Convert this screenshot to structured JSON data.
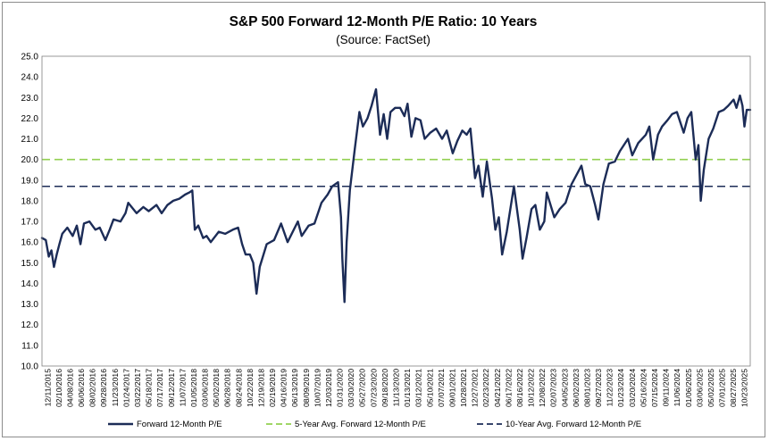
{
  "chart_data": {
    "type": "line",
    "title": "S&P 500 Forward 12-Month P/E Ratio: 10 Years",
    "subtitle": "(Source: FactSet)",
    "xlabel": "",
    "ylabel": "",
    "ylim": [
      10.0,
      25.0
    ],
    "y_ticks": [
      "10.0",
      "11.0",
      "12.0",
      "13.0",
      "14.0",
      "15.0",
      "16.0",
      "17.0",
      "18.0",
      "19.0",
      "20.0",
      "21.0",
      "22.0",
      "23.0",
      "24.0",
      "25.0"
    ],
    "x_range": [
      "2015-12-11",
      "2025-12-20"
    ],
    "x_ticks": [
      "12/11/2015",
      "02/10/2016",
      "04/08/2016",
      "06/06/2016",
      "08/02/2016",
      "09/28/2016",
      "11/23/2016",
      "01/24/2017",
      "03/22/2017",
      "05/18/2017",
      "07/17/2017",
      "09/12/2017",
      "11/07/2017",
      "01/05/2018",
      "03/06/2018",
      "05/02/2018",
      "06/28/2018",
      "08/24/2018",
      "10/22/2018",
      "12/19/2018",
      "02/19/2019",
      "04/16/2019",
      "06/13/2019",
      "08/09/2019",
      "10/07/2019",
      "12/03/2019",
      "01/31/2020",
      "03/30/2020",
      "05/27/2020",
      "07/23/2020",
      "09/18/2020",
      "11/13/2020",
      "01/13/2021",
      "03/12/2021",
      "05/10/2021",
      "07/07/2021",
      "09/01/2021",
      "10/28/2021",
      "12/27/2021",
      "02/23/2022",
      "04/21/2022",
      "06/17/2022",
      "08/16/2022",
      "10/12/2022",
      "12/08/2022",
      "02/07/2023",
      "04/05/2023",
      "06/02/2023",
      "08/01/2023",
      "09/27/2023",
      "11/22/2023",
      "01/23/2024",
      "03/20/2024",
      "05/16/2024",
      "07/15/2024",
      "09/11/2024",
      "11/06/2024",
      "01/06/2025",
      "03/06/2025",
      "05/02/2025",
      "07/01/2025",
      "08/27/2025",
      "10/23/2025"
    ],
    "grid": false,
    "legend_position": "bottom",
    "series": [
      {
        "name": "Forward 12-Month P/E",
        "color": "#1c2c57",
        "style": "solid",
        "points": [
          [
            "2015-12-11",
            16.2
          ],
          [
            "2015-12-31",
            16.1
          ],
          [
            "2016-01-15",
            15.3
          ],
          [
            "2016-01-29",
            15.6
          ],
          [
            "2016-02-11",
            14.8
          ],
          [
            "2016-02-25",
            15.4
          ],
          [
            "2016-03-10",
            15.9
          ],
          [
            "2016-03-25",
            16.4
          ],
          [
            "2016-04-20",
            16.7
          ],
          [
            "2016-05-18",
            16.3
          ],
          [
            "2016-06-08",
            16.8
          ],
          [
            "2016-06-27",
            15.9
          ],
          [
            "2016-07-15",
            16.9
          ],
          [
            "2016-08-12",
            17.0
          ],
          [
            "2016-09-12",
            16.6
          ],
          [
            "2016-10-05",
            16.7
          ],
          [
            "2016-11-03",
            16.1
          ],
          [
            "2016-11-25",
            16.6
          ],
          [
            "2016-12-15",
            17.1
          ],
          [
            "2017-01-20",
            17.0
          ],
          [
            "2017-02-15",
            17.4
          ],
          [
            "2017-03-01",
            17.9
          ],
          [
            "2017-04-13",
            17.4
          ],
          [
            "2017-05-18",
            17.7
          ],
          [
            "2017-06-15",
            17.5
          ],
          [
            "2017-07-25",
            17.8
          ],
          [
            "2017-08-21",
            17.4
          ],
          [
            "2017-09-20",
            17.8
          ],
          [
            "2017-10-20",
            18.0
          ],
          [
            "2017-11-20",
            18.1
          ],
          [
            "2017-12-20",
            18.3
          ],
          [
            "2018-01-10",
            18.4
          ],
          [
            "2018-01-26",
            18.5
          ],
          [
            "2018-02-08",
            16.6
          ],
          [
            "2018-02-26",
            16.8
          ],
          [
            "2018-03-23",
            16.2
          ],
          [
            "2018-04-10",
            16.3
          ],
          [
            "2018-05-02",
            16.0
          ],
          [
            "2018-06-12",
            16.5
          ],
          [
            "2018-07-15",
            16.4
          ],
          [
            "2018-08-24",
            16.6
          ],
          [
            "2018-09-20",
            16.7
          ],
          [
            "2018-10-11",
            15.9
          ],
          [
            "2018-10-29",
            15.4
          ],
          [
            "2018-11-20",
            15.4
          ],
          [
            "2018-12-07",
            15.0
          ],
          [
            "2018-12-24",
            13.5
          ],
          [
            "2019-01-10",
            14.8
          ],
          [
            "2019-02-15",
            15.9
          ],
          [
            "2019-03-25",
            16.1
          ],
          [
            "2019-04-30",
            16.9
          ],
          [
            "2019-06-03",
            16.0
          ],
          [
            "2019-07-26",
            17.0
          ],
          [
            "2019-08-15",
            16.3
          ],
          [
            "2019-09-20",
            16.8
          ],
          [
            "2019-10-20",
            16.9
          ],
          [
            "2019-11-25",
            17.9
          ],
          [
            "2019-12-27",
            18.3
          ],
          [
            "2020-01-20",
            18.7
          ],
          [
            "2020-02-19",
            18.9
          ],
          [
            "2020-03-05",
            17.2
          ],
          [
            "2020-03-12",
            15.2
          ],
          [
            "2020-03-23",
            13.1
          ],
          [
            "2020-04-03",
            16.0
          ],
          [
            "2020-04-20",
            18.5
          ],
          [
            "2020-05-15",
            20.5
          ],
          [
            "2020-06-08",
            22.3
          ],
          [
            "2020-06-26",
            21.6
          ],
          [
            "2020-07-20",
            22.0
          ],
          [
            "2020-08-10",
            22.6
          ],
          [
            "2020-09-02",
            23.4
          ],
          [
            "2020-09-23",
            21.2
          ],
          [
            "2020-10-12",
            22.2
          ],
          [
            "2020-10-30",
            21.0
          ],
          [
            "2020-11-16",
            22.3
          ],
          [
            "2020-12-10",
            22.5
          ],
          [
            "2021-01-05",
            22.5
          ],
          [
            "2021-01-27",
            22.1
          ],
          [
            "2021-02-12",
            22.7
          ],
          [
            "2021-03-04",
            21.1
          ],
          [
            "2021-03-25",
            22.0
          ],
          [
            "2021-04-20",
            21.9
          ],
          [
            "2021-05-12",
            21.0
          ],
          [
            "2021-06-10",
            21.3
          ],
          [
            "2021-07-10",
            21.5
          ],
          [
            "2021-08-10",
            21.0
          ],
          [
            "2021-09-03",
            21.4
          ],
          [
            "2021-10-04",
            20.3
          ],
          [
            "2021-10-28",
            20.9
          ],
          [
            "2021-11-22",
            21.4
          ],
          [
            "2021-12-15",
            21.2
          ],
          [
            "2022-01-03",
            21.5
          ],
          [
            "2022-01-27",
            19.1
          ],
          [
            "2022-02-14",
            19.7
          ],
          [
            "2022-03-08",
            18.2
          ],
          [
            "2022-03-29",
            19.9
          ],
          [
            "2022-04-25",
            18.1
          ],
          [
            "2022-05-12",
            16.6
          ],
          [
            "2022-05-30",
            17.2
          ],
          [
            "2022-06-16",
            15.4
          ],
          [
            "2022-07-10",
            16.5
          ],
          [
            "2022-08-16",
            18.7
          ],
          [
            "2022-09-15",
            16.6
          ],
          [
            "2022-09-30",
            15.2
          ],
          [
            "2022-10-20",
            16.2
          ],
          [
            "2022-11-15",
            17.6
          ],
          [
            "2022-12-05",
            17.8
          ],
          [
            "2022-12-28",
            16.6
          ],
          [
            "2023-01-20",
            17.0
          ],
          [
            "2023-02-02",
            18.4
          ],
          [
            "2023-03-13",
            17.2
          ],
          [
            "2023-04-10",
            17.6
          ],
          [
            "2023-05-10",
            17.9
          ],
          [
            "2023-06-10",
            18.8
          ],
          [
            "2023-07-31",
            19.7
          ],
          [
            "2023-08-20",
            18.8
          ],
          [
            "2023-09-15",
            18.7
          ],
          [
            "2023-10-10",
            17.8
          ],
          [
            "2023-10-27",
            17.1
          ],
          [
            "2023-11-22",
            18.8
          ],
          [
            "2023-12-20",
            19.8
          ],
          [
            "2024-01-20",
            19.9
          ],
          [
            "2024-02-15",
            20.4
          ],
          [
            "2024-03-28",
            21.0
          ],
          [
            "2024-04-19",
            20.2
          ],
          [
            "2024-05-20",
            20.8
          ],
          [
            "2024-06-28",
            21.2
          ],
          [
            "2024-07-16",
            21.6
          ],
          [
            "2024-08-05",
            20.0
          ],
          [
            "2024-08-30",
            21.2
          ],
          [
            "2024-09-20",
            21.6
          ],
          [
            "2024-10-18",
            21.9
          ],
          [
            "2024-11-11",
            22.2
          ],
          [
            "2024-12-06",
            22.3
          ],
          [
            "2025-01-10",
            21.3
          ],
          [
            "2025-01-30",
            22.0
          ],
          [
            "2025-02-18",
            22.3
          ],
          [
            "2025-03-13",
            20.0
          ],
          [
            "2025-03-27",
            20.7
          ],
          [
            "2025-04-08",
            18.0
          ],
          [
            "2025-04-24",
            19.5
          ],
          [
            "2025-05-19",
            21.0
          ],
          [
            "2025-06-12",
            21.5
          ],
          [
            "2025-07-10",
            22.3
          ],
          [
            "2025-08-05",
            22.4
          ],
          [
            "2025-08-28",
            22.6
          ],
          [
            "2025-09-25",
            22.9
          ],
          [
            "2025-10-10",
            22.5
          ],
          [
            "2025-10-28",
            23.1
          ],
          [
            "2025-11-10",
            22.6
          ],
          [
            "2025-11-20",
            21.6
          ],
          [
            "2025-12-02",
            22.4
          ],
          [
            "2025-12-20",
            22.4
          ]
        ]
      },
      {
        "name": "5-Year Avg. Forward 12-Month P/E",
        "color": "#92d050",
        "style": "dashed",
        "value": 20.0
      },
      {
        "name": "10-Year Avg. Forward 12-Month P/E",
        "color": "#1c2c57",
        "style": "dashed",
        "value": 18.7
      }
    ]
  }
}
